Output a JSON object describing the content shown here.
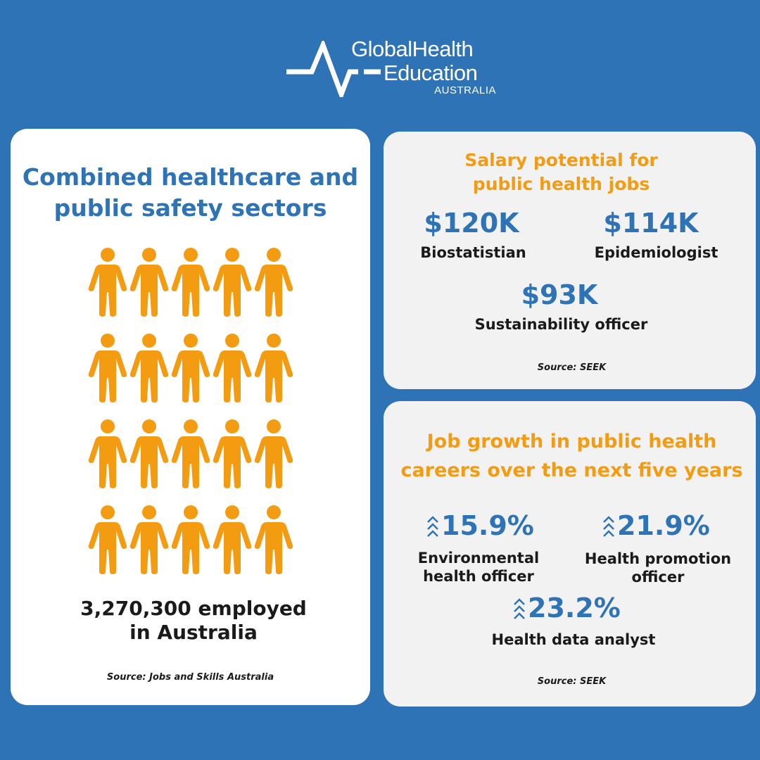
{
  "brand": {
    "line1": "GlobalHealth",
    "line2": "Education",
    "line3": "AUSTRALIA"
  },
  "colors": {
    "background": "#2f73b7",
    "accent_blue": "#2f73b7",
    "accent_orange": "#f39c12"
  },
  "employment": {
    "title": "Combined healthcare and public safety sectors",
    "people_count": 20,
    "icon": "person-icon",
    "stat_line1": "3,270,300 employed",
    "stat_line2": "in Australia",
    "source": "Source: Jobs and Skills Australia"
  },
  "salary": {
    "title_line1": "Salary potential for",
    "title_line2": "public health jobs",
    "items": [
      {
        "value": "$120K",
        "label": "Biostatistian"
      },
      {
        "value": "$114K",
        "label": "Epidemiologist"
      },
      {
        "value": "$93K",
        "label": "Sustainability officer"
      }
    ],
    "source": "Source: SEEK"
  },
  "growth": {
    "title_line1": "Job growth in public health",
    "title_line2": "careers over the next five years",
    "icon": "chevron-up-icon",
    "items": [
      {
        "value": "15.9%",
        "label_line1": "Environmental",
        "label_line2": "health officer"
      },
      {
        "value": "21.9%",
        "label_line1": "Health promotion",
        "label_line2": "officer"
      },
      {
        "value": "23.2%",
        "label_line1": "Health data analyst",
        "label_line2": ""
      }
    ],
    "source": "Source: SEEK"
  }
}
